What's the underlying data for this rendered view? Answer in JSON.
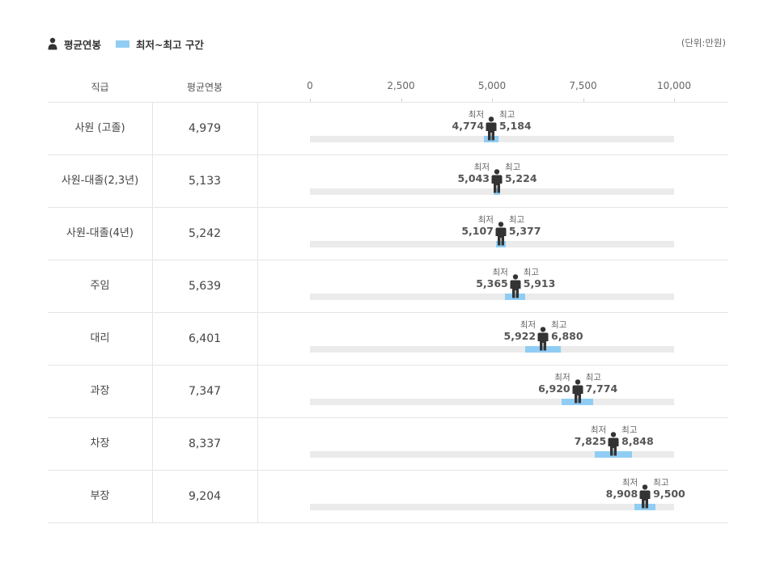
{
  "legend": {
    "avg_label": "평균연봉",
    "range_label": "최저~최고 구간",
    "person_icon": "person-icon",
    "range_color": "#90cdf4"
  },
  "unit_label": "(단위:만원)",
  "table": {
    "col_grade": "직급",
    "col_avg": "평균연봉"
  },
  "min_caption": "최저",
  "max_caption": "최고",
  "chart_data": {
    "type": "range-dot",
    "xlim": [
      0,
      10000
    ],
    "x_ticks": [
      0,
      2500,
      5000,
      7500,
      10000
    ],
    "x_tick_labels": [
      "0",
      "2,500",
      "5,000",
      "7,500",
      "10,000"
    ],
    "rows": [
      {
        "grade": "사원 (고졸)",
        "avg": 4979,
        "avg_label": "4,979",
        "min": 4774,
        "min_label": "4,774",
        "max": 5184,
        "max_label": "5,184"
      },
      {
        "grade": "사원-대졸(2,3년)",
        "avg": 5133,
        "avg_label": "5,133",
        "min": 5043,
        "min_label": "5,043",
        "max": 5224,
        "max_label": "5,224"
      },
      {
        "grade": "사원-대졸(4년)",
        "avg": 5242,
        "avg_label": "5,242",
        "min": 5107,
        "min_label": "5,107",
        "max": 5377,
        "max_label": "5,377"
      },
      {
        "grade": "주임",
        "avg": 5639,
        "avg_label": "5,639",
        "min": 5365,
        "min_label": "5,365",
        "max": 5913,
        "max_label": "5,913"
      },
      {
        "grade": "대리",
        "avg": 6401,
        "avg_label": "6,401",
        "min": 5922,
        "min_label": "5,922",
        "max": 6880,
        "max_label": "6,880"
      },
      {
        "grade": "과장",
        "avg": 7347,
        "avg_label": "7,347",
        "min": 6920,
        "min_label": "6,920",
        "max": 7774,
        "max_label": "7,774"
      },
      {
        "grade": "차장",
        "avg": 8337,
        "avg_label": "8,337",
        "min": 7825,
        "min_label": "7,825",
        "max": 8848,
        "max_label": "8,848"
      },
      {
        "grade": "부장",
        "avg": 9204,
        "avg_label": "9,204",
        "min": 8908,
        "min_label": "8,908",
        "max": 9500,
        "max_label": "9,500"
      }
    ]
  }
}
